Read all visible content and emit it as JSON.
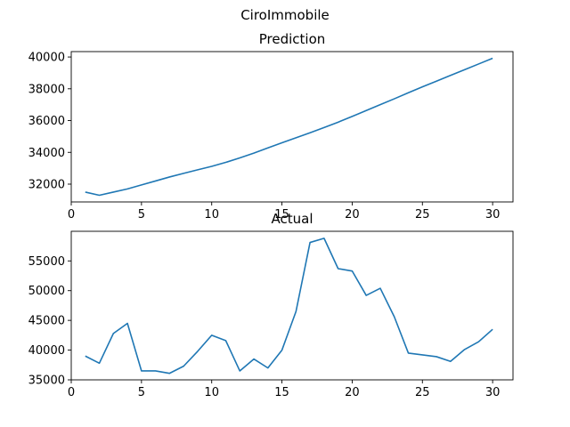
{
  "title": "CiroImmobile",
  "line_color": "#1f77b4",
  "chart_data": [
    {
      "type": "line",
      "title": "Prediction",
      "xlabel": "",
      "ylabel": "",
      "x": [
        1,
        2,
        3,
        4,
        5,
        6,
        7,
        8,
        9,
        10,
        11,
        12,
        13,
        14,
        15,
        16,
        17,
        18,
        19,
        20,
        21,
        22,
        23,
        24,
        25,
        26,
        27,
        28,
        29,
        30
      ],
      "values": [
        31500,
        31300,
        31500,
        31700,
        31950,
        32200,
        32450,
        32680,
        32900,
        33120,
        33370,
        33650,
        33950,
        34280,
        34600,
        34920,
        35230,
        35560,
        35900,
        36260,
        36630,
        37000,
        37370,
        37750,
        38120,
        38480,
        38840,
        39200,
        39560,
        39920
      ],
      "xlim": [
        0,
        31.45
      ],
      "ylim": [
        30880,
        40340
      ],
      "xticks": [
        0,
        5,
        10,
        15,
        20,
        25,
        30
      ],
      "yticks": [
        32000,
        34000,
        36000,
        38000,
        40000
      ],
      "xtick_labels": [
        "0",
        "5",
        "10",
        "15",
        "20",
        "25",
        "30"
      ],
      "ytick_labels": [
        "32000",
        "34000",
        "36000",
        "38000",
        "40000"
      ]
    },
    {
      "type": "line",
      "title": "Actual",
      "xlabel": "",
      "ylabel": "",
      "x": [
        1,
        2,
        3,
        4,
        5,
        6,
        7,
        8,
        9,
        10,
        11,
        12,
        13,
        14,
        15,
        16,
        17,
        18,
        19,
        20,
        21,
        22,
        23,
        24,
        25,
        26,
        27,
        28,
        29,
        30
      ],
      "values": [
        39000,
        37800,
        42800,
        44500,
        36500,
        36500,
        36100,
        37300,
        39800,
        42500,
        41600,
        36500,
        38500,
        37000,
        40000,
        46500,
        58100,
        58800,
        53700,
        53300,
        49200,
        50400,
        45600,
        39500,
        39200,
        38900,
        38100,
        40100,
        41400,
        43500
      ],
      "xlim": [
        0,
        31.45
      ],
      "ylim": [
        35000,
        59980
      ],
      "xticks": [
        0,
        5,
        10,
        15,
        20,
        25,
        30
      ],
      "yticks": [
        35000,
        40000,
        45000,
        50000,
        55000
      ],
      "xtick_labels": [
        "0",
        "5",
        "10",
        "15",
        "20",
        "25",
        "30"
      ],
      "ytick_labels": [
        "35000",
        "40000",
        "45000",
        "50000",
        "55000"
      ]
    }
  ]
}
